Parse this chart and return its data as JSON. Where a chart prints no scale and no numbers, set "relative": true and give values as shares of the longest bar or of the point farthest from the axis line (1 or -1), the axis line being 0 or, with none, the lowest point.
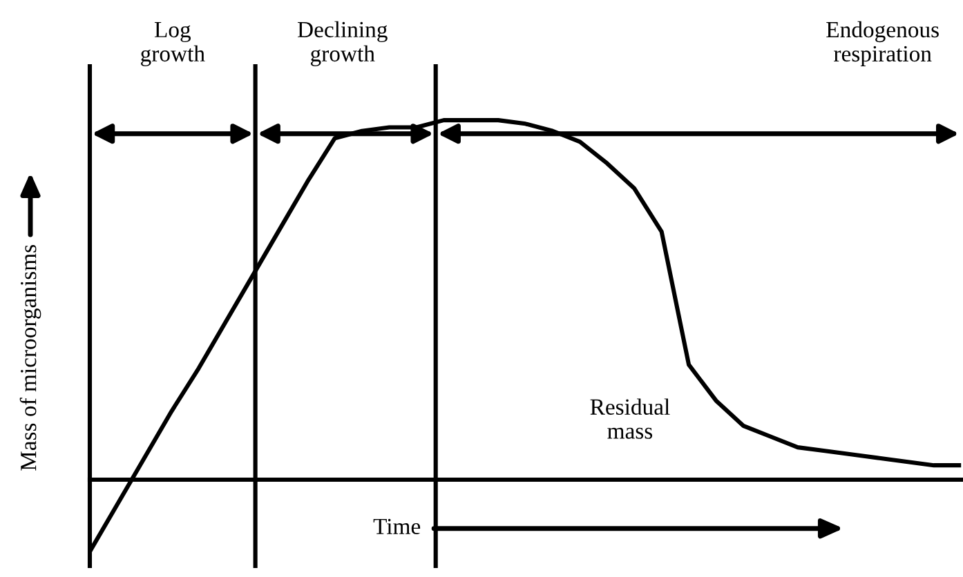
{
  "chart_data": {
    "type": "line",
    "relative": true,
    "xlabel": "Time",
    "ylabel": "Mass of microorganisms",
    "color": "#000000",
    "categories": [
      null,
      null,
      null,
      null,
      null,
      null,
      null,
      null,
      null,
      null,
      null,
      null,
      null,
      null,
      null,
      null,
      null,
      null,
      null,
      null,
      null,
      null,
      null,
      null,
      null,
      null,
      null,
      null,
      null,
      null,
      null,
      null,
      null
    ],
    "values": [
      -0.2,
      -0.07,
      0.06,
      0.19,
      0.31,
      0.44,
      0.57,
      0.7,
      0.83,
      0.95,
      0.97,
      0.98,
      0.98,
      1.0,
      1.0,
      1.0,
      0.99,
      0.97,
      0.94,
      0.88,
      0.81,
      0.69,
      0.32,
      0.22,
      0.15,
      0.12,
      0.09,
      0.08,
      0.07,
      0.06,
      0.05,
      0.04,
      0.04
    ],
    "ref_lines": [
      {
        "axis": "y",
        "value": 0
      }
    ],
    "annotations": [
      "Log\ngrowth",
      "Declining\ngrowth",
      "Endogenous\nrespiration",
      "Residual\nmass"
    ]
  }
}
